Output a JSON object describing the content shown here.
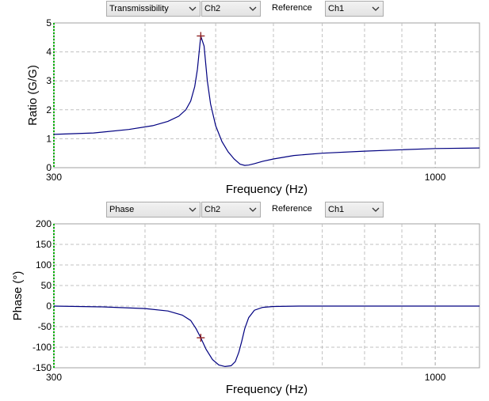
{
  "panels": [
    {
      "id": "top",
      "measure_select": "Transmissibility",
      "channel_select": "Ch2",
      "reference_label": "Reference",
      "reference_select": "Ch1"
    },
    {
      "id": "bottom",
      "measure_select": "Phase",
      "channel_select": "Ch2",
      "reference_label": "Reference",
      "reference_select": "Ch1"
    }
  ],
  "colors": {
    "trace": "#000080",
    "marker": "#8b1a1a",
    "grid": "#c0c0c0",
    "axis_highlight": "#00b000"
  },
  "chart_data": [
    {
      "type": "line",
      "xlabel": "Frequency (Hz)",
      "ylabel": "Ratio (G/G)",
      "xscale": "log",
      "xlim": [
        300,
        1150
      ],
      "ylim": [
        0,
        5
      ],
      "x_tick_labels": [
        "300",
        "1000"
      ],
      "y_ticks": [
        0,
        1,
        2,
        3,
        4,
        5
      ],
      "grid": true,
      "marker": {
        "x": 477,
        "y": 4.55
      },
      "series": [
        {
          "x": [
            300,
            340,
            380,
            410,
            430,
            445,
            455,
            462,
            468,
            472,
            477,
            482,
            487,
            492,
            500,
            510,
            520,
            530,
            540,
            548,
            555,
            565,
            580,
            600,
            640,
            700,
            800,
            900,
            1000,
            1150
          ],
          "y": [
            1.15,
            1.2,
            1.32,
            1.45,
            1.6,
            1.78,
            2.0,
            2.3,
            2.8,
            3.4,
            4.55,
            4.2,
            3.0,
            2.2,
            1.45,
            0.9,
            0.55,
            0.3,
            0.12,
            0.08,
            0.09,
            0.14,
            0.22,
            0.3,
            0.42,
            0.5,
            0.57,
            0.62,
            0.66,
            0.68
          ]
        }
      ]
    },
    {
      "type": "line",
      "xlabel": "Frequency (Hz)",
      "ylabel": "Phase (°)",
      "xscale": "log",
      "xlim": [
        300,
        1150
      ],
      "ylim": [
        -150,
        200
      ],
      "x_tick_labels": [
        "300",
        "1000"
      ],
      "y_ticks": [
        -150,
        -100,
        -50,
        0,
        50,
        100,
        150,
        200
      ],
      "grid": true,
      "marker": {
        "x": 477,
        "y": -77
      },
      "series": [
        {
          "x": [
            300,
            350,
            400,
            430,
            450,
            462,
            470,
            477,
            485,
            495,
            505,
            515,
            525,
            532,
            538,
            543,
            548,
            555,
            565,
            580,
            600,
            650,
            700,
            800,
            1000,
            1150
          ],
          "y": [
            0,
            -2,
            -6,
            -12,
            -22,
            -35,
            -55,
            -77,
            -105,
            -130,
            -143,
            -147,
            -145,
            -135,
            -112,
            -85,
            -55,
            -28,
            -10,
            -3,
            -1,
            0,
            0,
            0,
            0,
            0
          ]
        }
      ]
    }
  ]
}
